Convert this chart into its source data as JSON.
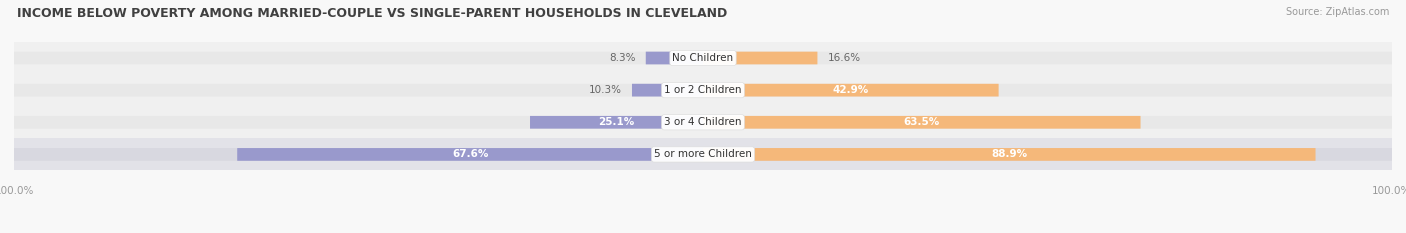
{
  "title": "INCOME BELOW POVERTY AMONG MARRIED-COUPLE VS SINGLE-PARENT HOUSEHOLDS IN CLEVELAND",
  "source": "Source: ZipAtlas.com",
  "categories": [
    "No Children",
    "1 or 2 Children",
    "3 or 4 Children",
    "5 or more Children"
  ],
  "married_values": [
    8.3,
    10.3,
    25.1,
    67.6
  ],
  "single_values": [
    16.6,
    42.9,
    63.5,
    88.9
  ],
  "married_color": "#9999cc",
  "single_color": "#f5b87a",
  "row_bg_light": "#f0f0f0",
  "row_bg_medium": "#e2e2e8",
  "bar_bg_light": "#e8e8e8",
  "bar_bg_dark": "#d8d8e0",
  "title_color": "#404040",
  "value_color_outside": "#666666",
  "value_color_inside": "#ffffff",
  "axis_label_color": "#999999",
  "max_value": 100.0,
  "figsize": [
    14.06,
    2.33
  ],
  "dpi": 100
}
